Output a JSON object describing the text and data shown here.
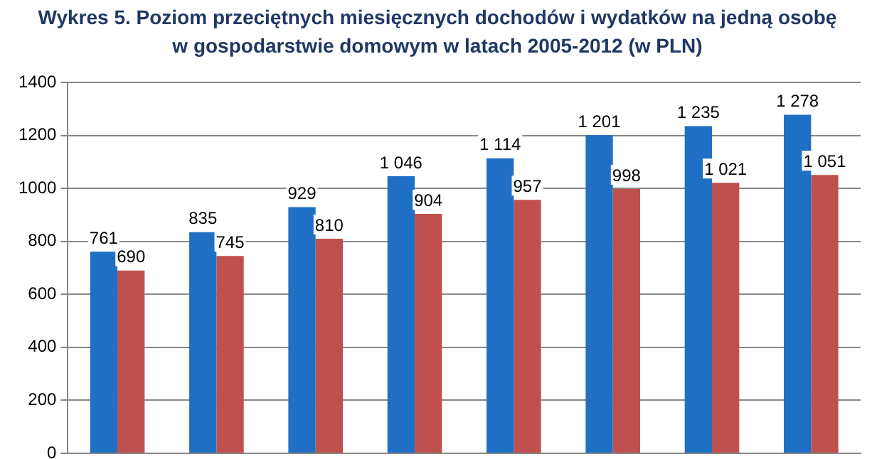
{
  "chart_data": {
    "type": "bar",
    "title": "Wykres 5. Poziom przeciętnych miesięcznych dochodów i wydatków na jedną osobę w gospodarstwie domowym w latach 2005-2012 (w PLN)",
    "categories": [
      null,
      null,
      null,
      null,
      null,
      null,
      null,
      null
    ],
    "series": [
      {
        "color": "#1f6fc5",
        "values": [
          761,
          835,
          929,
          1046,
          1114,
          1201,
          1235,
          1278
        ],
        "value_labels": [
          "761",
          "835",
          "929",
          "1 046",
          "1 114",
          "1 201",
          "1 235",
          "1 278"
        ]
      },
      {
        "color": "#c0504d",
        "values": [
          690,
          745,
          810,
          904,
          957,
          998,
          1021,
          1051
        ],
        "value_labels": [
          "690",
          "745",
          "810",
          "904",
          "957",
          "998",
          "1 021",
          "1 051"
        ]
      }
    ],
    "ylim": [
      0,
      1400
    ],
    "yticks": [
      0,
      200,
      400,
      600,
      800,
      1000,
      1200,
      1400
    ],
    "grid": "y",
    "tick_labels": "y",
    "legend": false
  }
}
